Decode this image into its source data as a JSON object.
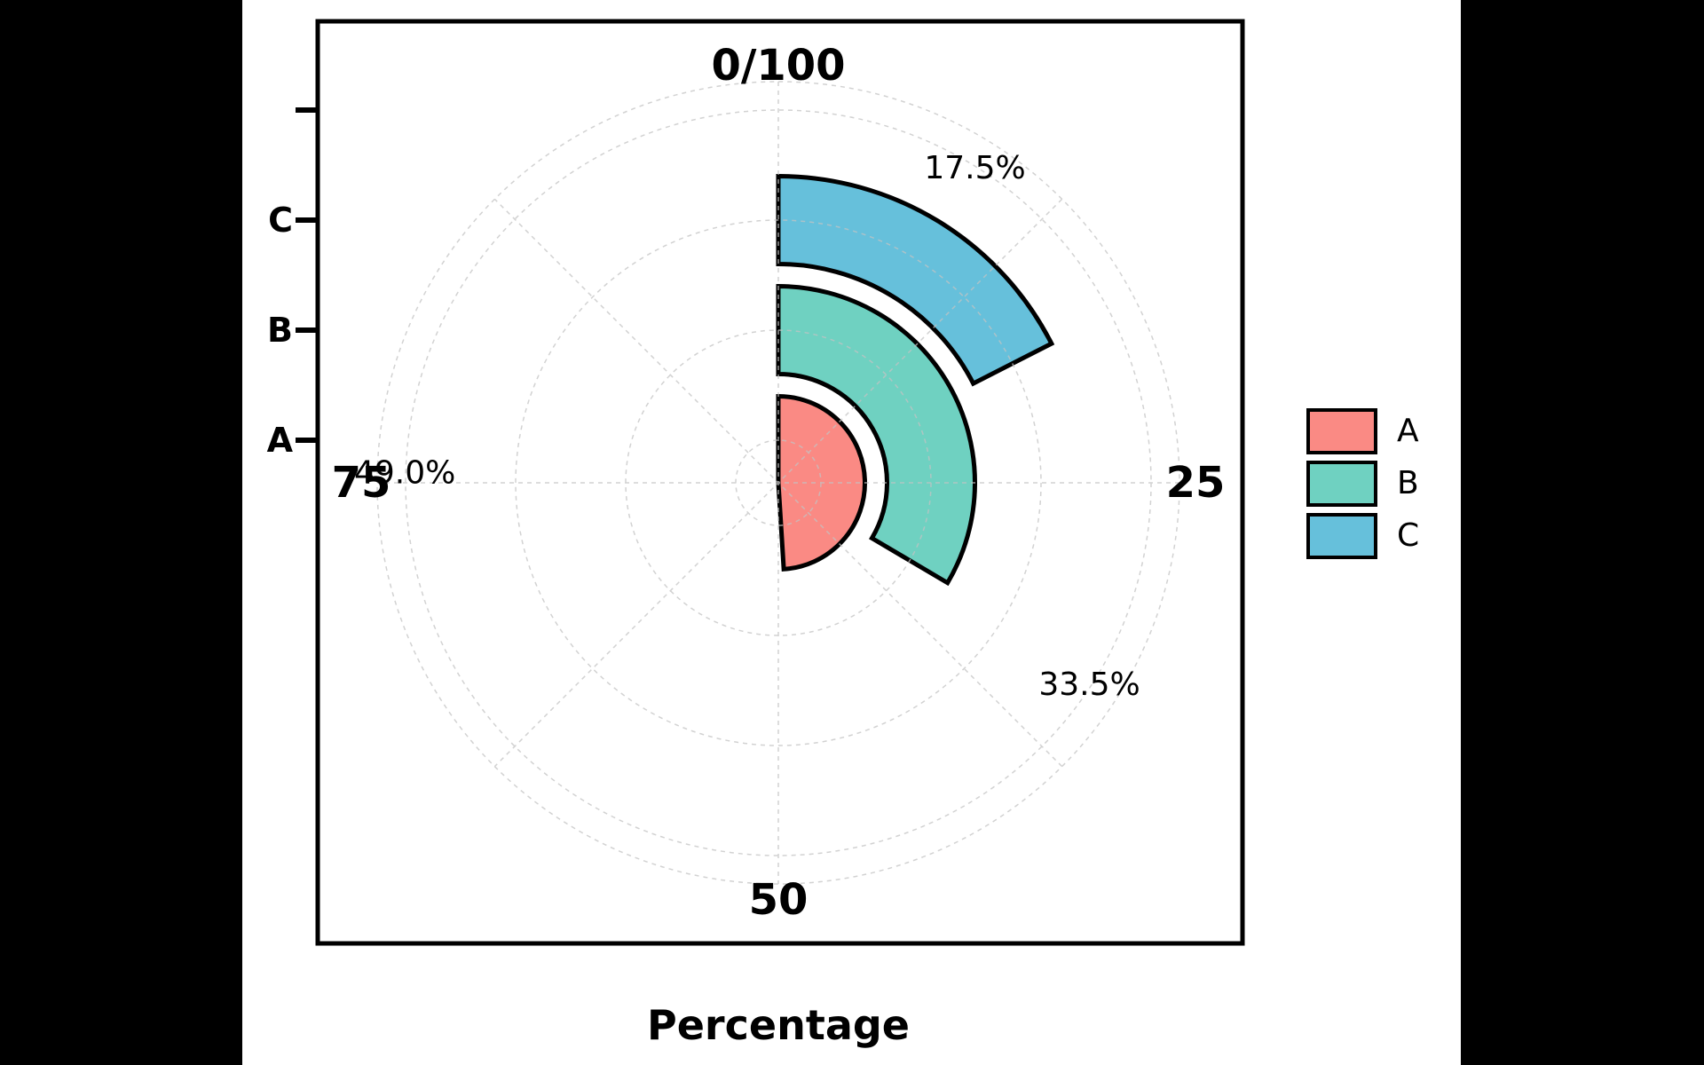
{
  "figure": {
    "background": "#000000",
    "panel_background": "#ffffff",
    "title": "Percentage"
  },
  "chart_data": {
    "type": "bar",
    "polar": true,
    "title": "Percentage",
    "categories": [
      "A",
      "B",
      "C"
    ],
    "values": [
      49.0,
      33.5,
      17.5
    ],
    "series": [
      {
        "name": "A",
        "value": 49.0,
        "color": "#FA8A84",
        "data_label": "49.0%"
      },
      {
        "name": "B",
        "value": 33.5,
        "color": "#6FD1C1",
        "data_label": "33.5%"
      },
      {
        "name": "C",
        "value": 17.5,
        "color": "#66C0DB",
        "data_label": "17.5%"
      }
    ],
    "angular_axis": {
      "unit": "percent",
      "min": 0,
      "max": 100,
      "start": "top",
      "direction": "clockwise",
      "tick_labels": [
        "0/100",
        "25",
        "50",
        "75"
      ],
      "tick_angles_deg": [
        0,
        90,
        180,
        270
      ]
    },
    "radial_axis": {
      "tick_labels": [
        "A",
        "B",
        "C",
        ""
      ],
      "rings": [
        0,
        1,
        2,
        3
      ]
    },
    "data_labels": [
      {
        "text": "49.0%",
        "angle_deg": 271.5,
        "radius_px": 421
      },
      {
        "text": "33.5%",
        "angle_deg": 123.0,
        "radius_px": 418
      },
      {
        "text": "17.5%",
        "angle_deg": 32.0,
        "radius_px": 418
      }
    ],
    "grid": true,
    "grid_color": "#c3c3c3",
    "legend": {
      "position": "right",
      "entries": [
        "A",
        "B",
        "C"
      ]
    },
    "xlabel": "Percentage",
    "ylabel": ""
  }
}
